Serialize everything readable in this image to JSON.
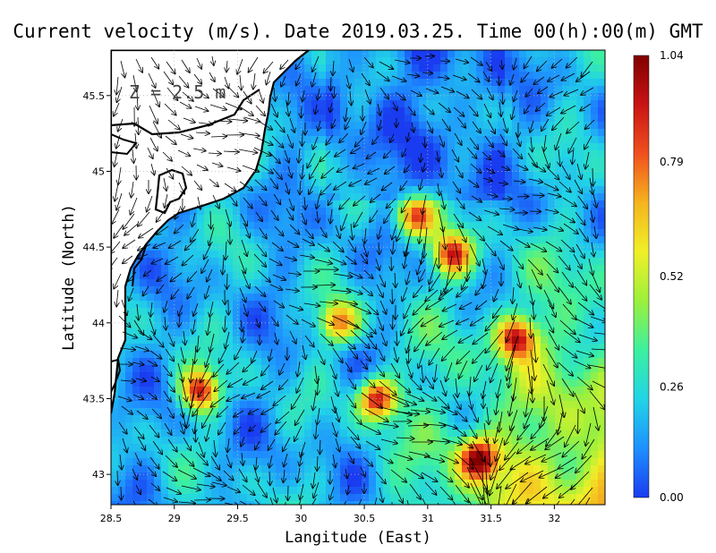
{
  "title": "Current velocity (m/s). Date 2019.03.25. Time 00(h):00(m) GMT",
  "depth_label": "Z = 2.5 m",
  "xlabel": "Langitude (East)",
  "ylabel": "Latitude (North)",
  "x_ticks": [
    "28.5",
    "29",
    "29.5",
    "30",
    "30.5",
    "31",
    "31.5",
    "32"
  ],
  "y_ticks": [
    "43",
    "43.5",
    "44",
    "44.5",
    "45",
    "45.5"
  ],
  "colorbar": {
    "ticks": [
      "0.00",
      "0.26",
      "0.52",
      "0.79",
      "1.04"
    ],
    "min": 0.0,
    "max": 1.04,
    "colors": [
      "#1a3cf0",
      "#1e90ff",
      "#22d4e6",
      "#3cf0a0",
      "#9cf03c",
      "#f0f028",
      "#f5b41e",
      "#f0501e",
      "#c81414",
      "#820000"
    ]
  },
  "chart_data": {
    "type": "heatmap",
    "title": "Current velocity (m/s). Date 2019.03.25. Time 00(h):00(m) GMT",
    "xlabel": "Langitude (East)",
    "ylabel": "Latitude (North)",
    "xlim": [
      28.5,
      32.4
    ],
    "ylim": [
      42.8,
      45.8
    ],
    "value_range": [
      0.0,
      1.04
    ],
    "units": "m/s",
    "grid": true,
    "overlay": "velocity vectors",
    "hotspots": [
      {
        "lon": 30.6,
        "lat": 43.5,
        "value": 0.95
      },
      {
        "lon": 29.2,
        "lat": 43.55,
        "value": 0.9
      },
      {
        "lon": 31.4,
        "lat": 43.1,
        "value": 0.9
      },
      {
        "lon": 31.2,
        "lat": 44.45,
        "value": 0.85
      },
      {
        "lon": 31.7,
        "lat": 43.9,
        "value": 0.85
      },
      {
        "lon": 30.3,
        "lat": 44.0,
        "value": 0.75
      },
      {
        "lon": 30.9,
        "lat": 44.7,
        "value": 0.8
      }
    ]
  }
}
